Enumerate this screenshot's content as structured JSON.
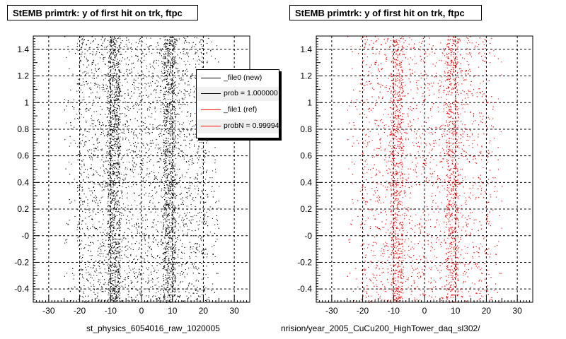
{
  "chart_data": [
    {
      "type": "scatter",
      "title": "StEMB primtrk: y of first hit on trk, ftpc",
      "xlabel": "st_physics_6054016_raw_1020005",
      "ylabel": "",
      "xlim": [
        -35,
        35
      ],
      "ylim": [
        -0.5,
        1.5
      ],
      "x_ticks": [
        -30,
        -20,
        -10,
        0,
        10,
        20,
        30
      ],
      "y_ticks": [
        -0.4,
        -0.2,
        0,
        0.2,
        0.4,
        0.6,
        0.8,
        1,
        1.2,
        1.4
      ],
      "y_tick_labels": [
        "-0.4",
        "-0.2",
        "-0",
        "0.2",
        "0.4",
        "0.6",
        "0.8",
        "1",
        "1.2",
        "1.4"
      ],
      "grid": true,
      "legend_position": "top-right",
      "series": [
        {
          "name": "_file0 (new)",
          "color": "#000000",
          "x_range": [
            -21,
            21
          ],
          "y_range": [
            -0.5,
            1.5
          ],
          "x_dense_bands": [
            [
              -11,
              -7
            ],
            [
              7,
              11
            ]
          ],
          "approx_points": 6000
        }
      ],
      "legend": [
        {
          "label": "_file0 (new)",
          "color": "#000000"
        },
        {
          "label": "prob = 1.000000",
          "color": "#000000"
        },
        {
          "label": "_file1 (ref)",
          "color": "#ff0000"
        },
        {
          "label": "probN = 0.99994",
          "color": "#ff0000"
        }
      ]
    },
    {
      "type": "scatter",
      "title": "StEMB primtrk: y of first hit on trk, ftpc",
      "xlabel": "nrision/year_2005_CuCu200_HighTower_daq_sl302/",
      "ylabel": "",
      "xlim": [
        -35,
        35
      ],
      "ylim": [
        -0.5,
        1.5
      ],
      "x_ticks": [
        -30,
        -20,
        -10,
        0,
        10,
        20,
        30
      ],
      "y_ticks": [
        -0.4,
        -0.2,
        0,
        0.2,
        0.4,
        0.6,
        0.8,
        1,
        1.2,
        1.4
      ],
      "y_tick_labels": [
        "-0.4",
        "-0.2",
        "-0",
        "0.2",
        "0.4",
        "0.6",
        "0.8",
        "1",
        "1.2",
        "1.4"
      ],
      "grid": true,
      "series": [
        {
          "name": "_file1 (ref)",
          "color": "#ff0000",
          "x_range": [
            -21,
            21
          ],
          "y_range": [
            -0.5,
            1.5
          ],
          "x_dense_bands": [
            [
              -11,
              -7
            ],
            [
              7,
              11
            ]
          ],
          "approx_points": 5000
        }
      ]
    }
  ]
}
